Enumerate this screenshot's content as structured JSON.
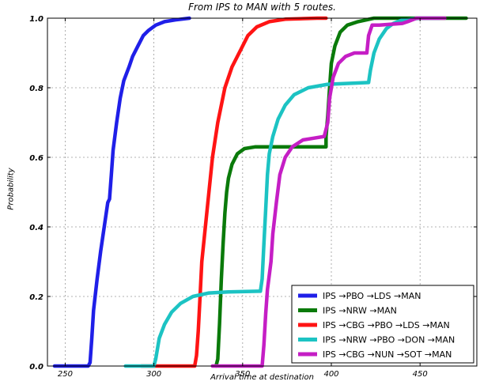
{
  "chart_data": {
    "type": "line",
    "title": "From IPS to MAN with 5 routes.",
    "xlabel": "Arrival time at destination",
    "ylabel": "Probability",
    "xlim": [
      240,
      482
    ],
    "ylim": [
      0,
      1.0
    ],
    "xticks": [
      250,
      300,
      350,
      400,
      450
    ],
    "yticks": [
      0.0,
      0.2,
      0.4,
      0.6,
      0.8,
      1.0
    ],
    "xtick_labels": [
      "250",
      "300",
      "350",
      "400",
      "450"
    ],
    "ytick_labels": [
      "0.0",
      "0.2",
      "0.4",
      "0.6",
      "0.8",
      "1.0"
    ],
    "grid": true,
    "legend_position": "lower-right",
    "series": [
      {
        "name": "IPS →PBO →LDS →MAN",
        "color": "#1f1fe8",
        "points": [
          [
            244,
            0
          ],
          [
            263,
            0
          ],
          [
            264,
            0.01
          ],
          [
            265,
            0.08
          ],
          [
            266,
            0.16
          ],
          [
            268,
            0.25
          ],
          [
            270,
            0.33
          ],
          [
            272,
            0.4
          ],
          [
            274,
            0.47
          ],
          [
            275,
            0.48
          ],
          [
            276,
            0.55
          ],
          [
            277,
            0.62
          ],
          [
            279,
            0.7
          ],
          [
            281,
            0.77
          ],
          [
            283,
            0.82
          ],
          [
            286,
            0.86
          ],
          [
            288,
            0.89
          ],
          [
            291,
            0.92
          ],
          [
            294,
            0.95
          ],
          [
            297,
            0.965
          ],
          [
            301,
            0.98
          ],
          [
            306,
            0.99
          ],
          [
            312,
            0.995
          ],
          [
            320,
            1.0
          ]
        ]
      },
      {
        "name": "IPS →NRW →MAN",
        "color": "#0a7a0a",
        "points": [
          [
            335,
            0
          ],
          [
            336,
            0.02
          ],
          [
            337,
            0.12
          ],
          [
            338,
            0.25
          ],
          [
            339,
            0.35
          ],
          [
            340,
            0.44
          ],
          [
            341,
            0.5
          ],
          [
            342,
            0.54
          ],
          [
            344,
            0.58
          ],
          [
            347,
            0.61
          ],
          [
            351,
            0.625
          ],
          [
            357,
            0.63
          ],
          [
            397,
            0.63
          ],
          [
            397,
            0.66
          ],
          [
            398,
            0.72
          ],
          [
            399,
            0.8
          ],
          [
            400,
            0.87
          ],
          [
            402,
            0.92
          ],
          [
            405,
            0.96
          ],
          [
            409,
            0.98
          ],
          [
            415,
            0.99
          ],
          [
            424,
            1.0
          ],
          [
            476,
            1.0
          ]
        ]
      },
      {
        "name": "IPS →CBG →PBO →LDS →MAN",
        "color": "#ff1414",
        "points": [
          [
            293,
            0
          ],
          [
            323,
            0
          ],
          [
            324,
            0.03
          ],
          [
            325,
            0.1
          ],
          [
            326,
            0.2
          ],
          [
            327,
            0.3
          ],
          [
            329,
            0.4
          ],
          [
            331,
            0.5
          ],
          [
            333,
            0.6
          ],
          [
            336,
            0.7
          ],
          [
            340,
            0.8
          ],
          [
            344,
            0.86
          ],
          [
            349,
            0.91
          ],
          [
            353,
            0.95
          ],
          [
            358,
            0.975
          ],
          [
            365,
            0.99
          ],
          [
            374,
            0.997
          ],
          [
            392,
            1.0
          ],
          [
            397,
            1.0
          ]
        ]
      },
      {
        "name": "IPS →NRW →PBO →DON →MAN",
        "color": "#1cc3c3",
        "points": [
          [
            284,
            0
          ],
          [
            300,
            0
          ],
          [
            301,
            0.02
          ],
          [
            303,
            0.08
          ],
          [
            306,
            0.12
          ],
          [
            310,
            0.155
          ],
          [
            315,
            0.18
          ],
          [
            322,
            0.2
          ],
          [
            331,
            0.21
          ],
          [
            342,
            0.213
          ],
          [
            359,
            0.215
          ],
          [
            360,
            0.215
          ],
          [
            361,
            0.25
          ],
          [
            362,
            0.35
          ],
          [
            363,
            0.45
          ],
          [
            364,
            0.55
          ],
          [
            365,
            0.61
          ],
          [
            367,
            0.66
          ],
          [
            370,
            0.71
          ],
          [
            374,
            0.75
          ],
          [
            379,
            0.78
          ],
          [
            387,
            0.8
          ],
          [
            398,
            0.81
          ],
          [
            421,
            0.815
          ],
          [
            422,
            0.85
          ],
          [
            424,
            0.9
          ],
          [
            427,
            0.94
          ],
          [
            431,
            0.97
          ],
          [
            435,
            0.985
          ],
          [
            440,
            0.995
          ],
          [
            450,
            1.0
          ],
          [
            461,
            1.0
          ]
        ]
      },
      {
        "name": "IPS →CBG →NUN →SOT →MAN",
        "color": "#c51ec5",
        "points": [
          [
            333,
            0
          ],
          [
            361,
            0
          ],
          [
            362,
            0.06
          ],
          [
            363,
            0.15
          ],
          [
            364,
            0.22
          ],
          [
            366,
            0.3
          ],
          [
            367,
            0.38
          ],
          [
            369,
            0.47
          ],
          [
            371,
            0.55
          ],
          [
            374,
            0.6
          ],
          [
            378,
            0.63
          ],
          [
            384,
            0.65
          ],
          [
            390,
            0.655
          ],
          [
            396,
            0.66
          ],
          [
            398,
            0.7
          ],
          [
            399,
            0.77
          ],
          [
            401,
            0.83
          ],
          [
            404,
            0.87
          ],
          [
            408,
            0.89
          ],
          [
            413,
            0.9
          ],
          [
            420,
            0.9
          ],
          [
            421,
            0.95
          ],
          [
            423,
            0.98
          ],
          [
            427,
            0.98
          ],
          [
            440,
            0.985
          ],
          [
            443,
            0.99
          ],
          [
            448,
            1.0
          ],
          [
            464,
            1.0
          ]
        ]
      }
    ]
  }
}
